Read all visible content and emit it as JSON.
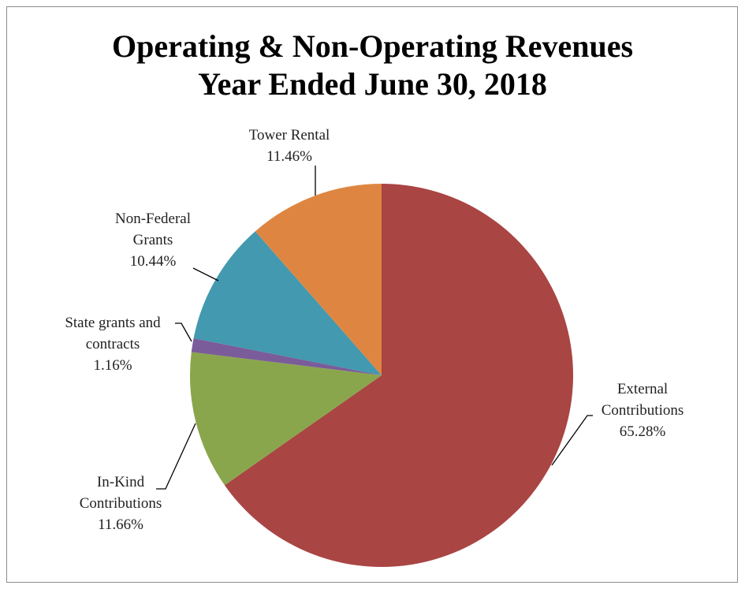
{
  "chart_data": {
    "type": "pie",
    "title": "Operating & Non-Operating Revenues",
    "subtitle": "Year Ended June 30, 2018",
    "categories": [
      "External Contributions",
      "In-Kind Contributions",
      "State grants and contracts",
      "Non-Federal Grants",
      "Tower Rental"
    ],
    "values": [
      65.28,
      11.66,
      1.16,
      10.44,
      11.46
    ],
    "value_labels": [
      "65.28%",
      "11.66%",
      "1.16%",
      "10.44%",
      "11.46%"
    ],
    "colors": [
      "#a94543",
      "#8aa64c",
      "#7a5c9a",
      "#4299b0",
      "#de8641"
    ]
  }
}
